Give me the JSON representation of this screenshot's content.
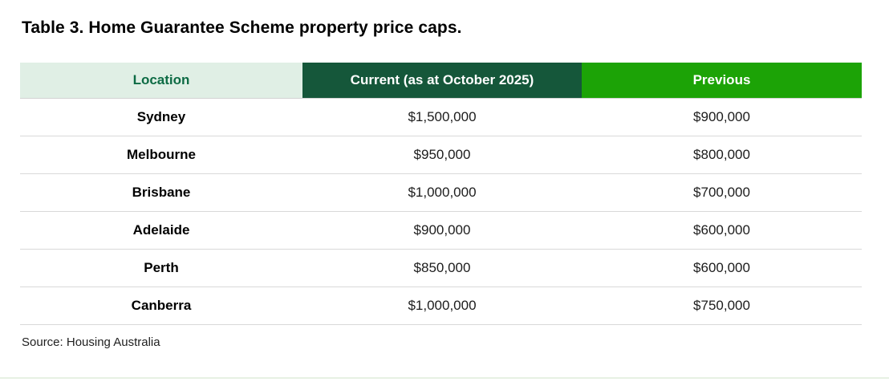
{
  "chart_data": {
    "type": "table",
    "title": "Table 3. Home Guarantee Scheme property price caps.",
    "columns": [
      "Location",
      "Current (as at October 2025)",
      "Previous"
    ],
    "rows": [
      {
        "location": "Sydney",
        "current": "$1,500,000",
        "previous": "$900,000",
        "current_value": 1500000,
        "previous_value": 900000
      },
      {
        "location": "Melbourne",
        "current": "$950,000",
        "previous": "$800,000",
        "current_value": 950000,
        "previous_value": 800000
      },
      {
        "location": "Brisbane",
        "current": "$1,000,000",
        "previous": "$700,000",
        "current_value": 1000000,
        "previous_value": 700000
      },
      {
        "location": "Adelaide",
        "current": "$900,000",
        "previous": "$600,000",
        "current_value": 900000,
        "previous_value": 600000
      },
      {
        "location": "Perth",
        "current": "$850,000",
        "previous": "$600,000",
        "current_value": 850000,
        "previous_value": 600000
      },
      {
        "location": "Canberra",
        "current": "$1,000,000",
        "previous": "$750,000",
        "current_value": 1000000,
        "previous_value": 750000
      }
    ],
    "source": "Source: Housing Australia",
    "legend_position": "none",
    "grid": "horizontal-row-dividers"
  },
  "colors": {
    "location_header_bg": "#e0efe5",
    "location_header_text": "#0d6b44",
    "current_header_bg": "#15573a",
    "previous_header_bg": "#1ca306",
    "header_text": "#ffffff",
    "row_divider": "#d9d9d9",
    "bottom_accent": "#e7f1e3",
    "background": "#ffffff"
  }
}
